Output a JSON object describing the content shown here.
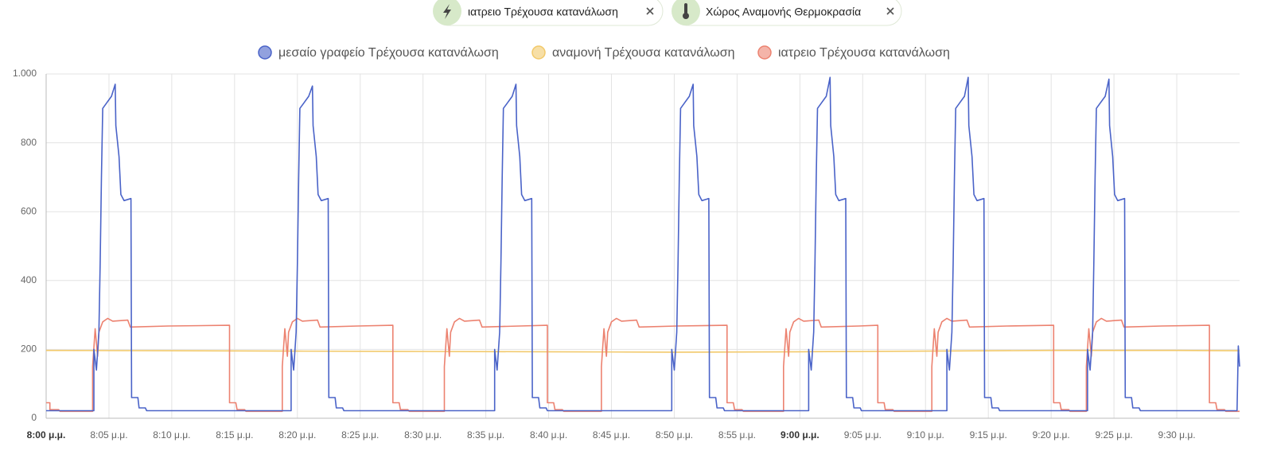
{
  "filters": [
    {
      "label": "ιατρειο Τρέχουσα κατανάλωση"
    },
    {
      "label": "Χώρος Αναμονής Θερμοκρασία"
    }
  ],
  "chart_data": {
    "type": "line",
    "xlim": [
      0,
      95
    ],
    "ylim": [
      0,
      1000
    ],
    "grid": true,
    "yticks": [
      0,
      200,
      400,
      600,
      800,
      {
        "value": 1000,
        "label": "1.000"
      }
    ],
    "xticks": [
      {
        "value": 0,
        "label": "8:00 μ.μ.",
        "bold": true
      },
      {
        "value": 5,
        "label": "8:05 μ.μ."
      },
      {
        "value": 10,
        "label": "8:10 μ.μ."
      },
      {
        "value": 15,
        "label": "8:15 μ.μ."
      },
      {
        "value": 20,
        "label": "8:20 μ.μ."
      },
      {
        "value": 25,
        "label": "8:25 μ.μ."
      },
      {
        "value": 30,
        "label": "8:30 μ.μ."
      },
      {
        "value": 35,
        "label": "8:35 μ.μ."
      },
      {
        "value": 40,
        "label": "8:40 μ.μ."
      },
      {
        "value": 45,
        "label": "8:45 μ.μ."
      },
      {
        "value": 50,
        "label": "8:50 μ.μ."
      },
      {
        "value": 55,
        "label": "8:55 μ.μ."
      },
      {
        "value": 60,
        "label": "9:00 μ.μ.",
        "bold": true
      },
      {
        "value": 65,
        "label": "9:05 μ.μ."
      },
      {
        "value": 70,
        "label": "9:10 μ.μ."
      },
      {
        "value": 75,
        "label": "9:15 μ.μ."
      },
      {
        "value": 80,
        "label": "9:20 μ.μ."
      },
      {
        "value": 85,
        "label": "9:25 μ.μ."
      },
      {
        "value": 90,
        "label": "9:30 μ.μ."
      }
    ],
    "series": [
      {
        "name": "μεσαίο γραφείο Τρέχουσα κατανάλωση",
        "color": "#4a63c8",
        "x": [
          0,
          3.8,
          3.8,
          4.0,
          4.2,
          4.3,
          4.4,
          4.5,
          4.8,
          5.2,
          5.5,
          5.55,
          5.8,
          5.95,
          6.2,
          6.75,
          6.8,
          7.3,
          7.4,
          7.9,
          8.0,
          19.5,
          19.5,
          19.7,
          19.9,
          20.0,
          20.1,
          20.2,
          20.5,
          20.9,
          21.2,
          21.25,
          21.5,
          21.65,
          21.9,
          22.45,
          22.5,
          23.0,
          23.1,
          23.6,
          23.7,
          35.7,
          35.7,
          35.9,
          36.1,
          36.2,
          36.3,
          36.4,
          36.7,
          37.1,
          37.4,
          37.45,
          37.7,
          37.85,
          38.1,
          38.65,
          38.7,
          39.2,
          39.3,
          39.8,
          39.9,
          49.8,
          49.8,
          50.0,
          50.2,
          50.3,
          50.4,
          50.5,
          50.8,
          51.2,
          51.5,
          51.55,
          51.8,
          51.95,
          52.2,
          52.75,
          52.8,
          53.3,
          53.4,
          53.9,
          54.0,
          60.7,
          60.7,
          60.9,
          61.1,
          61.2,
          61.3,
          61.4,
          61.7,
          62.1,
          62.4,
          62.45,
          62.7,
          62.85,
          63.1,
          63.65,
          63.7,
          64.2,
          64.3,
          64.8,
          64.9,
          71.7,
          71.7,
          71.9,
          72.1,
          72.2,
          72.3,
          72.4,
          72.7,
          73.1,
          73.4,
          73.45,
          73.7,
          73.85,
          74.1,
          74.65,
          74.7,
          75.2,
          75.3,
          75.8,
          75.9,
          82.9,
          82.9,
          83.1,
          83.3,
          83.4,
          83.5,
          83.6,
          83.9,
          84.3,
          84.6,
          84.65,
          84.9,
          85.05,
          85.3,
          85.85,
          85.9,
          86.4,
          86.5,
          87.0,
          87.1,
          94.8,
          94.9,
          95
        ],
        "values": [
          22,
          22,
          200,
          140,
          250,
          450,
          700,
          900,
          915,
          935,
          970,
          850,
          760,
          650,
          632,
          638,
          60,
          60,
          30,
          30,
          22,
          22,
          200,
          140,
          250,
          450,
          700,
          900,
          915,
          935,
          965,
          850,
          760,
          650,
          632,
          638,
          60,
          60,
          30,
          30,
          22,
          22,
          200,
          140,
          250,
          450,
          700,
          900,
          915,
          935,
          970,
          850,
          760,
          650,
          632,
          638,
          60,
          60,
          30,
          30,
          22,
          22,
          200,
          140,
          250,
          450,
          700,
          900,
          915,
          935,
          970,
          850,
          760,
          650,
          632,
          638,
          60,
          60,
          30,
          30,
          22,
          22,
          200,
          140,
          250,
          450,
          700,
          900,
          915,
          935,
          990,
          850,
          760,
          650,
          632,
          638,
          60,
          60,
          30,
          30,
          22,
          22,
          200,
          140,
          250,
          450,
          700,
          900,
          915,
          935,
          990,
          850,
          760,
          650,
          632,
          638,
          60,
          60,
          30,
          30,
          22,
          22,
          200,
          140,
          250,
          450,
          700,
          900,
          915,
          935,
          985,
          850,
          760,
          650,
          632,
          638,
          60,
          60,
          30,
          30,
          22,
          22,
          210,
          150
        ]
      },
      {
        "name": "αναμονή Τρέχουσα κατανάλωση",
        "color": "#f2c96a",
        "x": [
          0,
          10,
          20,
          30,
          40,
          50,
          60,
          70,
          80,
          90,
          95
        ],
        "values": [
          197,
          196,
          195,
          194,
          193,
          192,
          193,
          195,
          197,
          197,
          196
        ]
      },
      {
        "name": "ιατρειο Τρέχουσα κατανάλωση",
        "color": "#ec8270",
        "x": [
          0,
          0.3,
          0.3,
          1.0,
          1.1,
          3.7,
          3.7,
          3.9,
          4.1,
          4.2,
          4.5,
          4.9,
          5.3,
          6.5,
          6.7,
          9.7,
          14.6,
          14.6,
          15.1,
          15.2,
          15.8,
          15.9,
          18.8,
          18.8,
          19.0,
          19.2,
          19.3,
          19.6,
          20.0,
          20.4,
          21.6,
          21.8,
          24.8,
          27.6,
          27.6,
          28.1,
          28.2,
          28.8,
          28.9,
          31.7,
          31.7,
          31.9,
          32.1,
          32.2,
          32.5,
          32.9,
          33.3,
          34.5,
          34.7,
          37.7,
          39.9,
          39.9,
          40.4,
          40.5,
          41.1,
          41.2,
          44.2,
          44.2,
          44.4,
          44.6,
          44.7,
          45.0,
          45.4,
          45.8,
          47.0,
          47.2,
          50.2,
          54.2,
          54.2,
          54.7,
          54.8,
          55.4,
          55.5,
          58.7,
          58.7,
          58.9,
          59.1,
          59.2,
          59.5,
          59.9,
          60.3,
          61.5,
          61.7,
          64.7,
          66.2,
          66.2,
          66.7,
          66.8,
          67.4,
          67.5,
          70.5,
          70.5,
          70.7,
          70.9,
          71.0,
          71.3,
          71.7,
          72.1,
          73.3,
          73.5,
          76.5,
          80.2,
          80.2,
          80.7,
          80.8,
          81.4,
          81.5,
          82.8,
          82.8,
          83.0,
          83.2,
          83.3,
          83.6,
          84.0,
          84.4,
          85.6,
          85.8,
          88.8,
          92.6,
          92.6,
          93.1,
          93.2,
          93.8,
          93.9,
          95
        ],
        "values": [
          45,
          45,
          25,
          25,
          20,
          20,
          150,
          260,
          180,
          250,
          280,
          290,
          282,
          285,
          265,
          268,
          270,
          45,
          45,
          25,
          25,
          20,
          20,
          150,
          260,
          180,
          250,
          280,
          290,
          282,
          285,
          265,
          268,
          270,
          45,
          45,
          25,
          25,
          20,
          20,
          150,
          260,
          180,
          250,
          280,
          290,
          282,
          285,
          265,
          268,
          270,
          45,
          45,
          25,
          25,
          20,
          20,
          150,
          260,
          180,
          250,
          280,
          290,
          282,
          285,
          265,
          268,
          270,
          45,
          45,
          25,
          25,
          20,
          20,
          150,
          260,
          180,
          250,
          280,
          290,
          282,
          285,
          265,
          268,
          270,
          45,
          45,
          25,
          25,
          20,
          20,
          150,
          260,
          180,
          250,
          280,
          290,
          282,
          285,
          265,
          268,
          270,
          45,
          45,
          25,
          25,
          20,
          20,
          150,
          260,
          180,
          250,
          280,
          290,
          282,
          285,
          265,
          268,
          270,
          45,
          45,
          25,
          25,
          20,
          20
        ]
      }
    ]
  }
}
